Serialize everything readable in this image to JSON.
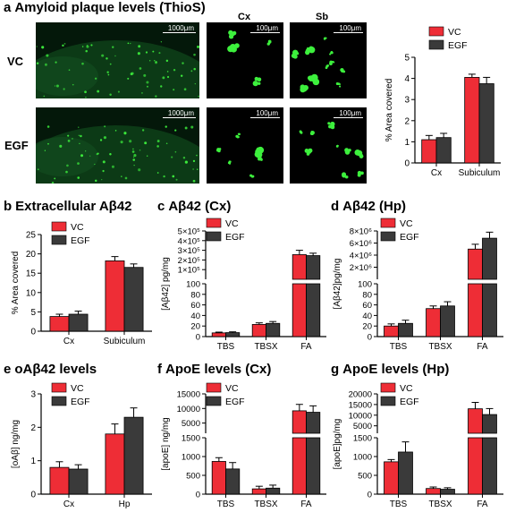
{
  "colors": {
    "vc": "#ee2d36",
    "egf": "#3a3a3a",
    "plaque": "#3df03d",
    "tissue": "#0c3a16"
  },
  "panel_a": {
    "letter": "a",
    "title": "Amyloid plaque levels (ThioS)",
    "row_vc": "VC",
    "row_egf": "EGF",
    "col_cx": "Cx",
    "col_sb": "Sb",
    "scale_large": "1000μm",
    "scale_small": "100μm"
  },
  "titles": {
    "b": {
      "letter": "b",
      "text": "Extracellular Aβ42"
    },
    "c": {
      "letter": "c",
      "text": "Aβ42 (Cx)"
    },
    "d": {
      "letter": "d",
      "text": "Aβ42 (Hp)"
    },
    "e": {
      "letter": "e",
      "text": "oAβ42 levels"
    },
    "f": {
      "letter": "f",
      "text": "ApoE levels (Cx)"
    },
    "g": {
      "letter": "g",
      "text": "ApoE levels (Hp)"
    }
  },
  "chart_data": [
    {
      "id": "a",
      "type": "bar",
      "ylabel": "% Area covered",
      "categories": [
        "Cx",
        "Subiculum"
      ],
      "ylim": [
        0,
        5
      ],
      "yticks": [
        0,
        1,
        2,
        3,
        4,
        5
      ],
      "legend": "top-left",
      "series": [
        {
          "name": "VC",
          "values": [
            1.1,
            4.05
          ],
          "errors": [
            0.2,
            0.15
          ]
        },
        {
          "name": "EGF",
          "values": [
            1.2,
            3.75
          ],
          "errors": [
            0.2,
            0.3
          ]
        }
      ]
    },
    {
      "id": "b",
      "type": "bar",
      "ylabel": "% Area covered",
      "categories": [
        "Cx",
        "Subiculum"
      ],
      "ylim": [
        0,
        25
      ],
      "yticks": [
        0,
        5,
        10,
        15,
        20,
        25
      ],
      "legend": "top-left",
      "series": [
        {
          "name": "VC",
          "values": [
            3.8,
            18.2
          ],
          "errors": [
            0.6,
            1.1
          ]
        },
        {
          "name": "EGF",
          "values": [
            4.4,
            16.5
          ],
          "errors": [
            0.8,
            0.9
          ]
        }
      ]
    },
    {
      "id": "c",
      "type": "bar",
      "ylabel": "[Aβ42] pg/mg",
      "categories": [
        "TBS",
        "TBSX",
        "FA"
      ],
      "broken_axis": true,
      "lower_ylim": [
        0,
        100
      ],
      "lower_yticks": [
        0,
        20,
        40,
        60,
        80,
        100
      ],
      "upper_ylim": [
        0,
        500000
      ],
      "upper_yticks": [
        100000,
        200000,
        300000,
        400000,
        500000
      ],
      "upper_tick_labels": [
        "1×10⁵",
        "2×10⁵",
        "3×10⁵",
        "4×10⁵",
        "5×10⁵"
      ],
      "legend": "top-left",
      "series": [
        {
          "name": "VC",
          "values": [
            7,
            23,
            255000
          ],
          "errors": [
            1.5,
            3,
            45000
          ]
        },
        {
          "name": "EGF",
          "values": [
            7.5,
            25,
            245000
          ],
          "errors": [
            1.5,
            3.5,
            25000
          ]
        }
      ]
    },
    {
      "id": "d",
      "type": "bar",
      "ylabel": "[Aβ42]pg/mg",
      "categories": [
        "TBS",
        "TBSX",
        "FA"
      ],
      "broken_axis": true,
      "lower_ylim": [
        0,
        100
      ],
      "lower_yticks": [
        0,
        20,
        40,
        60,
        80,
        100
      ],
      "upper_ylim": [
        0,
        8000000
      ],
      "upper_yticks": [
        2000000,
        4000000,
        6000000,
        8000000
      ],
      "upper_tick_labels": [
        "2×10⁶",
        "4×10⁶",
        "6×10⁶",
        "8×10⁶"
      ],
      "legend": "top-left",
      "series": [
        {
          "name": "VC",
          "values": [
            20,
            53,
            5000000
          ],
          "errors": [
            4,
            5,
            800000
          ]
        },
        {
          "name": "EGF",
          "values": [
            25,
            58,
            6800000
          ],
          "errors": [
            6,
            8,
            1000000
          ]
        }
      ]
    },
    {
      "id": "e",
      "type": "bar",
      "ylabel": "[oAβ] ng/mg",
      "categories": [
        "Cx",
        "Hp"
      ],
      "ylim": [
        0,
        3
      ],
      "yticks": [
        0,
        1,
        2,
        3
      ],
      "legend": "top-left",
      "series": [
        {
          "name": "VC",
          "values": [
            0.8,
            1.8
          ],
          "errors": [
            0.17,
            0.3
          ]
        },
        {
          "name": "EGF",
          "values": [
            0.75,
            2.3
          ],
          "errors": [
            0.13,
            0.28
          ]
        }
      ]
    },
    {
      "id": "f",
      "type": "bar",
      "ylabel": "[apoE] ng/mg",
      "categories": [
        "TBS",
        "TBSX",
        "FA"
      ],
      "broken_axis": true,
      "lower_ylim": [
        0,
        1500
      ],
      "lower_yticks": [
        0,
        500,
        1000,
        1500
      ],
      "upper_ylim": [
        1500,
        15000
      ],
      "upper_yticks": [
        5000,
        10000,
        15000
      ],
      "upper_tick_labels": [
        "5000",
        "10000",
        "15000"
      ],
      "legend": "top-left",
      "series": [
        {
          "name": "VC",
          "values": [
            870,
            140,
            9200
          ],
          "errors": [
            100,
            70,
            2200
          ]
        },
        {
          "name": "EGF",
          "values": [
            670,
            160,
            8700
          ],
          "errors": [
            170,
            80,
            2200
          ]
        }
      ]
    },
    {
      "id": "g",
      "type": "bar",
      "ylabel": "[apoE]pg/mg",
      "categories": [
        "TBS",
        "TBSX",
        "FA"
      ],
      "broken_axis": true,
      "lower_ylim": [
        0,
        1500
      ],
      "lower_yticks": [
        0,
        500,
        1000,
        1500
      ],
      "upper_ylim": [
        1500,
        20000
      ],
      "upper_yticks": [
        5000,
        10000,
        15000,
        20000
      ],
      "upper_tick_labels": [
        "5000",
        "10000",
        "15000",
        "20000"
      ],
      "legend": "top-left",
      "series": [
        {
          "name": "VC",
          "values": [
            860,
            150,
            13000
          ],
          "errors": [
            60,
            40,
            3000
          ]
        },
        {
          "name": "EGF",
          "values": [
            1120,
            130,
            10300
          ],
          "errors": [
            270,
            40,
            2800
          ]
        }
      ]
    }
  ]
}
